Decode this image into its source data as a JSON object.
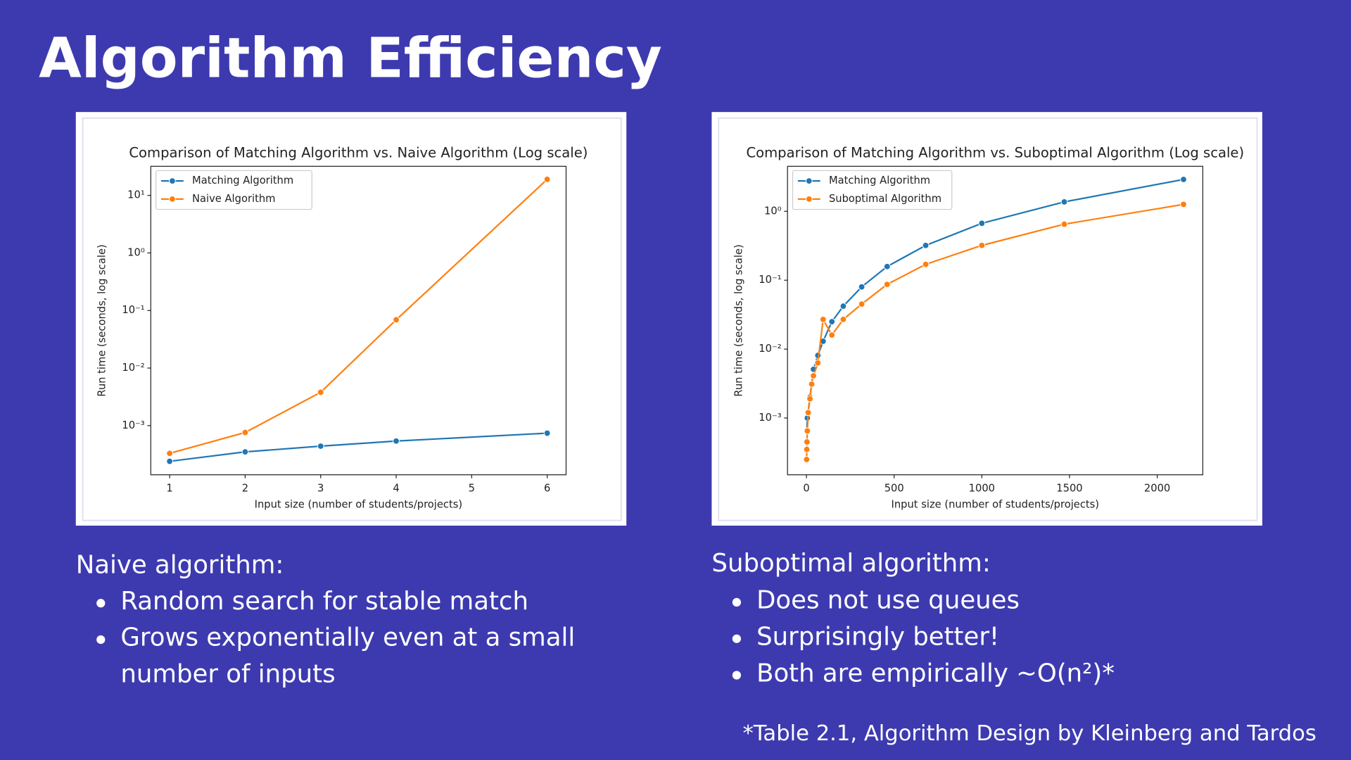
{
  "title": "Algorithm Efficiency",
  "chart_data": [
    {
      "type": "line",
      "title": "Comparison of Matching Algorithm vs. Naive Algorithm (Log scale)",
      "x_label": "Input size (number of students/projects)",
      "y_label": "Run time (seconds, log scale)",
      "log_y": true,
      "legend": "upper left",
      "grid": false,
      "xlim": [
        0.75,
        6.25
      ],
      "xticks": [
        1,
        2,
        3,
        4,
        5,
        6
      ],
      "ylim": [
        0.00014,
        32
      ],
      "yticks": [
        {
          "value": 0.001,
          "label": "10⁻³"
        },
        {
          "value": 0.01,
          "label": "10⁻²"
        },
        {
          "value": 0.1,
          "label": "10⁻¹"
        },
        {
          "value": 1,
          "label": "10⁰"
        },
        {
          "value": 10,
          "label": "10¹"
        }
      ],
      "series": [
        {
          "name": "Matching Algorithm",
          "color": "#1f77b4",
          "x": [
            1,
            2,
            3,
            4,
            6
          ],
          "values": [
            0.00024,
            0.00035,
            0.00044,
            0.00054,
            0.00074
          ]
        },
        {
          "name": "Naive Algorithm",
          "color": "#ff7f0e",
          "x": [
            1,
            2,
            3,
            4,
            6
          ],
          "values": [
            0.00033,
            0.00076,
            0.0038,
            0.069,
            19
          ]
        }
      ]
    },
    {
      "type": "line",
      "title": "Comparison of Matching Algorithm vs. Suboptimal Algorithm (Log scale)",
      "x_label": "Input size (number of students/projects)",
      "y_label": "Run time (seconds, log scale)",
      "log_y": true,
      "legend": "upper left",
      "grid": false,
      "xlim": [
        -108,
        2260
      ],
      "xticks": [
        0,
        500,
        1000,
        1500,
        2000
      ],
      "ylim": [
        0.00015,
        4.5
      ],
      "yticks": [
        {
          "value": 0.001,
          "label": "10⁻³"
        },
        {
          "value": 0.01,
          "label": "10⁻²"
        },
        {
          "value": 0.1,
          "label": "10⁻¹"
        },
        {
          "value": 1,
          "label": "10⁰"
        }
      ],
      "series": [
        {
          "name": "Matching Algorithm",
          "color": "#1f77b4",
          "x": [
            2,
            5,
            20,
            40,
            65,
            95,
            145,
            210,
            315,
            460,
            680,
            1000,
            1470,
            2150
          ],
          "values": [
            0.00065,
            0.001,
            0.002,
            0.0051,
            0.0081,
            0.013,
            0.025,
            0.042,
            0.08,
            0.158,
            0.32,
            0.67,
            1.37,
            2.9
          ]
        },
        {
          "name": "Suboptimal Algorithm",
          "color": "#ff7f0e",
          "x": [
            1,
            2,
            3,
            5,
            10,
            20,
            30,
            40,
            65,
            95,
            145,
            210,
            315,
            460,
            680,
            1000,
            1470,
            2150
          ],
          "values": [
            0.00025,
            0.00035,
            0.00045,
            0.00065,
            0.0012,
            0.0019,
            0.0031,
            0.0041,
            0.0063,
            0.027,
            0.016,
            0.027,
            0.045,
            0.087,
            0.17,
            0.32,
            0.65,
            1.26
          ]
        }
      ]
    }
  ],
  "sections": [
    {
      "heading": "Naive algorithm:",
      "bullets": [
        "Random search for stable match",
        "Grows exponentially even at a small number of inputs"
      ]
    },
    {
      "heading": "Suboptimal algorithm:",
      "bullets": [
        "Does not use queues",
        "Surprisingly better!",
        "Both are empirically ~O(n²)*"
      ]
    }
  ],
  "footnote": "*Table 2.1, Algorithm Design by Kleinberg and Tardos"
}
